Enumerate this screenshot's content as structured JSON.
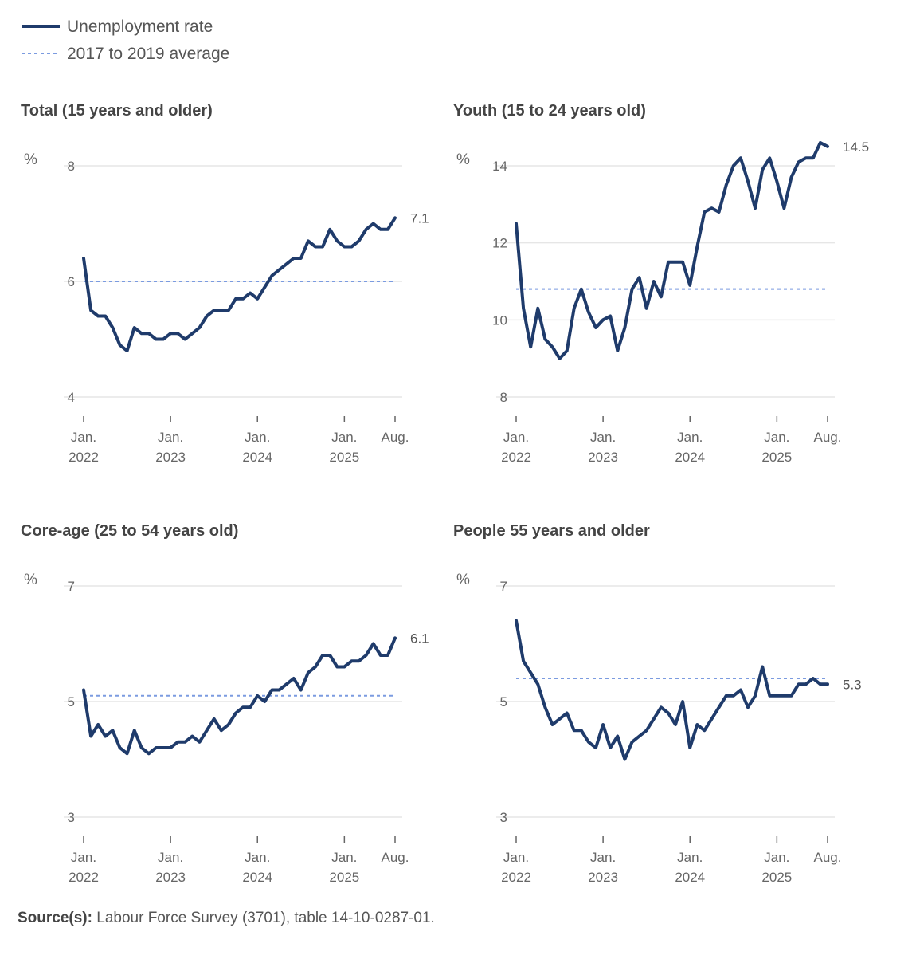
{
  "legend": {
    "line_label": "Unemployment rate",
    "avg_label": "2017 to 2019 average"
  },
  "colors": {
    "line": "#1f3b6b",
    "average": "#7b9be0",
    "grid": "#e6e6e6"
  },
  "source": {
    "label": "Source(s):",
    "text": " Labour Force Survey (3701), table 14-10-0287-01."
  },
  "chart_data": [
    {
      "type": "line",
      "title": "Total (15 years and older)",
      "ylabel": "%",
      "ylim": [
        4,
        8
      ],
      "yticks": [
        "4",
        "6",
        "8"
      ],
      "xticks": [
        {
          "month": 0,
          "l1": "Jan.",
          "l2": "2022"
        },
        {
          "month": 12,
          "l1": "Jan.",
          "l2": "2023"
        },
        {
          "month": 24,
          "l1": "Jan.",
          "l2": "2024"
        },
        {
          "month": 36,
          "l1": "Jan.",
          "l2": "2025"
        },
        {
          "month": 43,
          "l1": "Aug.",
          "l2": ""
        }
      ],
      "x_start": "Jan. 2022",
      "x_end": "Aug. 2025",
      "average": 6.0,
      "end_label": "7.1",
      "values": [
        6.4,
        5.5,
        5.4,
        5.4,
        5.2,
        4.9,
        4.8,
        5.2,
        5.1,
        5.1,
        5.0,
        5.0,
        5.1,
        5.1,
        5.0,
        5.1,
        5.2,
        5.4,
        5.5,
        5.5,
        5.5,
        5.7,
        5.7,
        5.8,
        5.7,
        5.9,
        6.1,
        6.2,
        6.3,
        6.4,
        6.4,
        6.7,
        6.6,
        6.6,
        6.9,
        6.7,
        6.6,
        6.6,
        6.7,
        6.9,
        7.0,
        6.9,
        6.9,
        7.1
      ]
    },
    {
      "type": "line",
      "title": "Youth (15 to 24 years old)",
      "ylabel": "%",
      "ylim": [
        8,
        14
      ],
      "yticks": [
        "8",
        "10",
        "12",
        "14"
      ],
      "xticks": [
        {
          "month": 0,
          "l1": "Jan.",
          "l2": "2022"
        },
        {
          "month": 12,
          "l1": "Jan.",
          "l2": "2023"
        },
        {
          "month": 24,
          "l1": "Jan.",
          "l2": "2024"
        },
        {
          "month": 36,
          "l1": "Jan.",
          "l2": "2025"
        },
        {
          "month": 43,
          "l1": "Aug.",
          "l2": ""
        }
      ],
      "x_start": "Jan. 2022",
      "x_end": "Aug. 2025",
      "average": 10.8,
      "end_label": "14.5",
      "values": [
        12.5,
        10.3,
        9.3,
        10.3,
        9.5,
        9.3,
        9.0,
        9.2,
        10.3,
        10.8,
        10.2,
        9.8,
        10.0,
        10.1,
        9.2,
        9.8,
        10.8,
        11.1,
        10.3,
        11.0,
        10.6,
        11.5,
        11.5,
        11.5,
        10.9,
        11.9,
        12.8,
        12.9,
        12.8,
        13.5,
        14.0,
        14.2,
        13.6,
        12.9,
        13.9,
        14.2,
        13.6,
        12.9,
        13.7,
        14.1,
        14.2,
        14.2,
        14.6,
        14.5
      ]
    },
    {
      "type": "line",
      "title": "Core-age (25 to 54 years old)",
      "ylabel": "%",
      "ylim": [
        3,
        7
      ],
      "yticks": [
        "3",
        "5",
        "7"
      ],
      "xticks": [
        {
          "month": 0,
          "l1": "Jan.",
          "l2": "2022"
        },
        {
          "month": 12,
          "l1": "Jan.",
          "l2": "2023"
        },
        {
          "month": 24,
          "l1": "Jan.",
          "l2": "2024"
        },
        {
          "month": 36,
          "l1": "Jan.",
          "l2": "2025"
        },
        {
          "month": 43,
          "l1": "Aug.",
          "l2": ""
        }
      ],
      "x_start": "Jan. 2022",
      "x_end": "Aug. 2025",
      "average": 5.1,
      "end_label": "6.1",
      "values": [
        5.2,
        4.4,
        4.6,
        4.4,
        4.5,
        4.2,
        4.1,
        4.5,
        4.2,
        4.1,
        4.2,
        4.2,
        4.2,
        4.3,
        4.3,
        4.4,
        4.3,
        4.5,
        4.7,
        4.5,
        4.6,
        4.8,
        4.9,
        4.9,
        5.1,
        5.0,
        5.2,
        5.2,
        5.3,
        5.4,
        5.2,
        5.5,
        5.6,
        5.8,
        5.8,
        5.6,
        5.6,
        5.7,
        5.7,
        5.8,
        6.0,
        5.8,
        5.8,
        6.1
      ]
    },
    {
      "type": "line",
      "title": "People 55 years and older",
      "ylabel": "%",
      "ylim": [
        3,
        7
      ],
      "yticks": [
        "3",
        "5",
        "7"
      ],
      "xticks": [
        {
          "month": 0,
          "l1": "Jan.",
          "l2": "2022"
        },
        {
          "month": 12,
          "l1": "Jan.",
          "l2": "2023"
        },
        {
          "month": 24,
          "l1": "Jan.",
          "l2": "2024"
        },
        {
          "month": 36,
          "l1": "Jan.",
          "l2": "2025"
        },
        {
          "month": 43,
          "l1": "Aug.",
          "l2": ""
        }
      ],
      "x_start": "Jan. 2022",
      "x_end": "Aug. 2025",
      "average": 5.4,
      "end_label": "5.3",
      "values": [
        6.4,
        5.7,
        5.5,
        5.3,
        4.9,
        4.6,
        4.7,
        4.8,
        4.5,
        4.5,
        4.3,
        4.2,
        4.6,
        4.2,
        4.4,
        4.0,
        4.3,
        4.4,
        4.5,
        4.7,
        4.9,
        4.8,
        4.6,
        5.0,
        4.2,
        4.6,
        4.5,
        4.7,
        4.9,
        5.1,
        5.1,
        5.2,
        4.9,
        5.1,
        5.6,
        5.1,
        5.1,
        5.1,
        5.1,
        5.3,
        5.3,
        5.4,
        5.3,
        5.3
      ]
    }
  ]
}
